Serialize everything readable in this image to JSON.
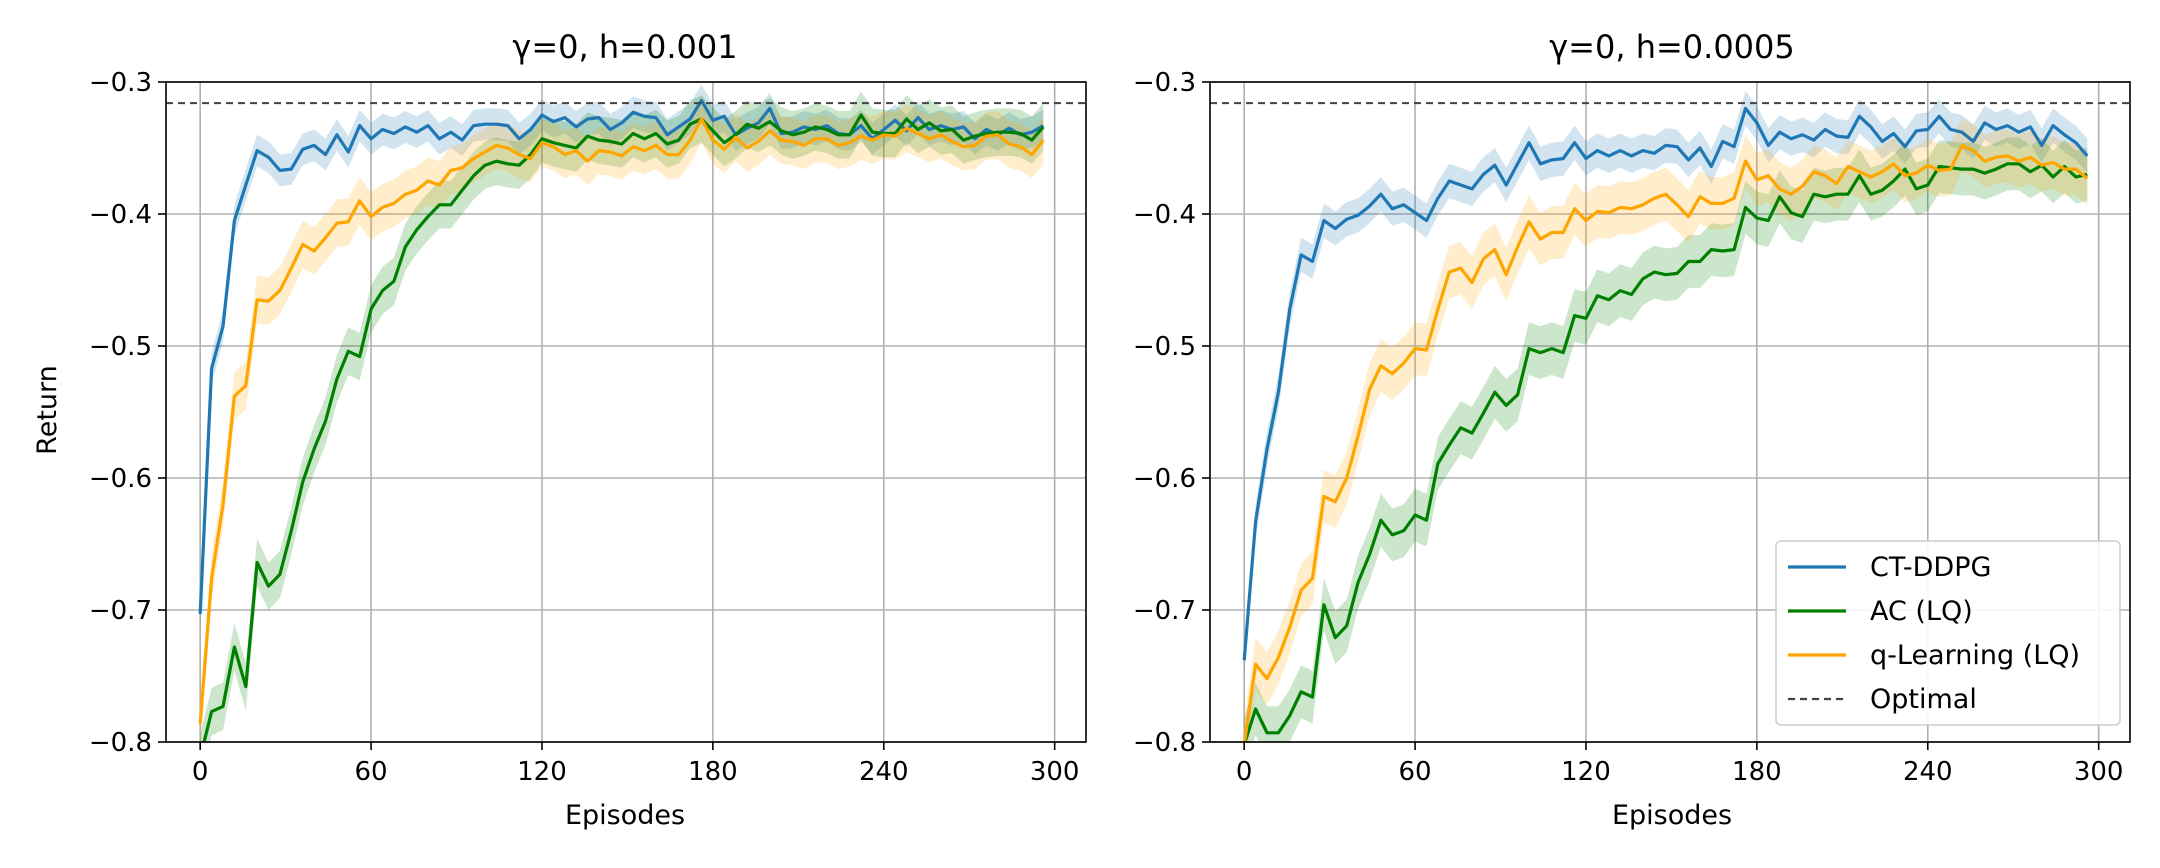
{
  "chart_data": [
    {
      "type": "line",
      "title": "γ=0, h=0.001",
      "xlabel": "Episodes",
      "ylabel": "Return",
      "xlim": [
        -12,
        311
      ],
      "ylim": [
        -0.8,
        -0.3
      ],
      "xticks": [
        0,
        60,
        120,
        180,
        240,
        300
      ],
      "xtick_labels": [
        "0",
        "60",
        "120",
        "180",
        "240",
        "300"
      ],
      "yticks": [
        -0.3,
        -0.4,
        -0.5,
        -0.6,
        -0.7,
        -0.8
      ],
      "ytick_labels": [
        "−0.3",
        "−0.4",
        "−0.5",
        "−0.6",
        "−0.7",
        "−0.8"
      ],
      "grid": true,
      "legend": false,
      "reference_line": {
        "name": "Optimal",
        "y": -0.316,
        "style": "dashed",
        "color": "#444444"
      },
      "series": [
        {
          "name": "CT-DDPG",
          "color": "#1f77b4",
          "x": [
            0,
            4,
            8,
            12,
            16,
            20,
            24,
            28,
            32,
            36,
            40,
            44,
            48,
            52,
            56,
            60,
            64,
            68,
            72,
            76,
            80,
            84,
            88,
            92,
            96,
            100,
            104,
            108,
            112,
            116,
            120,
            124,
            128,
            132,
            136,
            140,
            144,
            148,
            152,
            156,
            160,
            164,
            168,
            172,
            176,
            180,
            184,
            188,
            192,
            196,
            200,
            204,
            208,
            212,
            216,
            220,
            224,
            228,
            232,
            236,
            240,
            244,
            248,
            252,
            256,
            260,
            264,
            268,
            272,
            276,
            280,
            284,
            288,
            292,
            296
          ],
          "y": [
            -0.703,
            -0.517,
            -0.485,
            -0.405,
            -0.378,
            -0.352,
            -0.357,
            -0.367,
            -0.366,
            -0.351,
            -0.348,
            -0.355,
            -0.34,
            -0.353,
            -0.333,
            -0.343,
            -0.336,
            -0.339,
            -0.334,
            -0.338,
            -0.333,
            -0.343,
            -0.338,
            -0.344,
            -0.333,
            -0.332,
            -0.332,
            -0.333,
            -0.343,
            -0.336,
            -0.325,
            -0.33,
            -0.327,
            -0.334,
            -0.328,
            -0.327,
            -0.336,
            -0.331,
            -0.323,
            -0.326,
            -0.327,
            -0.34,
            -0.334,
            -0.328,
            -0.314,
            -0.329,
            -0.326,
            -0.34,
            -0.335,
            -0.331,
            -0.32,
            -0.339,
            -0.338,
            -0.334,
            -0.336,
            -0.333,
            -0.339,
            -0.34,
            -0.333,
            -0.343,
            -0.336,
            -0.329,
            -0.337,
            -0.327,
            -0.336,
            -0.333,
            -0.336,
            -0.334,
            -0.343,
            -0.336,
            -0.34,
            -0.335,
            -0.34,
            -0.338,
            -0.333
          ],
          "band": 0.012
        },
        {
          "name": "AC (LQ)",
          "color": "#008000",
          "x": [
            0,
            4,
            8,
            12,
            16,
            20,
            24,
            28,
            32,
            36,
            40,
            44,
            48,
            52,
            56,
            60,
            64,
            68,
            72,
            76,
            80,
            84,
            88,
            92,
            96,
            100,
            104,
            108,
            112,
            116,
            120,
            124,
            128,
            132,
            136,
            140,
            144,
            148,
            152,
            156,
            160,
            164,
            168,
            172,
            176,
            180,
            184,
            188,
            192,
            196,
            200,
            204,
            208,
            212,
            216,
            220,
            224,
            228,
            232,
            236,
            240,
            244,
            248,
            252,
            256,
            260,
            264,
            268,
            272,
            276,
            280,
            284,
            288,
            292,
            296
          ],
          "y": [
            -0.812,
            -0.777,
            -0.773,
            -0.728,
            -0.758,
            -0.664,
            -0.682,
            -0.673,
            -0.64,
            -0.603,
            -0.578,
            -0.557,
            -0.525,
            -0.504,
            -0.508,
            -0.472,
            -0.458,
            -0.451,
            -0.425,
            -0.412,
            -0.402,
            -0.393,
            -0.393,
            -0.382,
            -0.371,
            -0.363,
            -0.36,
            -0.362,
            -0.363,
            -0.355,
            -0.343,
            -0.346,
            -0.348,
            -0.35,
            -0.341,
            -0.344,
            -0.345,
            -0.347,
            -0.339,
            -0.343,
            -0.339,
            -0.347,
            -0.344,
            -0.332,
            -0.328,
            -0.337,
            -0.346,
            -0.34,
            -0.332,
            -0.335,
            -0.33,
            -0.337,
            -0.34,
            -0.338,
            -0.334,
            -0.336,
            -0.34,
            -0.34,
            -0.325,
            -0.338,
            -0.339,
            -0.339,
            -0.328,
            -0.336,
            -0.331,
            -0.337,
            -0.336,
            -0.344,
            -0.341,
            -0.339,
            -0.338,
            -0.338,
            -0.339,
            -0.344,
            -0.334
          ],
          "band": 0.018
        },
        {
          "name": "q-Learning (LQ)",
          "color": "#ffa500",
          "x": [
            0,
            4,
            8,
            12,
            16,
            20,
            24,
            28,
            32,
            36,
            40,
            44,
            48,
            52,
            56,
            60,
            64,
            68,
            72,
            76,
            80,
            84,
            88,
            92,
            96,
            100,
            104,
            108,
            112,
            116,
            120,
            124,
            128,
            132,
            136,
            140,
            144,
            148,
            152,
            156,
            160,
            164,
            168,
            172,
            176,
            180,
            184,
            188,
            192,
            196,
            200,
            204,
            208,
            212,
            216,
            220,
            224,
            228,
            232,
            236,
            240,
            244,
            248,
            252,
            256,
            260,
            264,
            268,
            272,
            276,
            280,
            284,
            288,
            292,
            296
          ],
          "y": [
            -0.786,
            -0.676,
            -0.62,
            -0.538,
            -0.53,
            -0.465,
            -0.466,
            -0.458,
            -0.441,
            -0.423,
            -0.428,
            -0.418,
            -0.407,
            -0.406,
            -0.39,
            -0.402,
            -0.395,
            -0.392,
            -0.385,
            -0.382,
            -0.375,
            -0.378,
            -0.367,
            -0.365,
            -0.358,
            -0.353,
            -0.348,
            -0.35,
            -0.355,
            -0.358,
            -0.346,
            -0.349,
            -0.355,
            -0.352,
            -0.36,
            -0.352,
            -0.353,
            -0.356,
            -0.349,
            -0.352,
            -0.348,
            -0.355,
            -0.355,
            -0.344,
            -0.328,
            -0.344,
            -0.351,
            -0.342,
            -0.35,
            -0.345,
            -0.337,
            -0.344,
            -0.345,
            -0.348,
            -0.343,
            -0.343,
            -0.348,
            -0.346,
            -0.341,
            -0.344,
            -0.34,
            -0.341,
            -0.335,
            -0.339,
            -0.343,
            -0.34,
            -0.345,
            -0.349,
            -0.348,
            -0.341,
            -0.34,
            -0.347,
            -0.349,
            -0.355,
            -0.344
          ],
          "band": 0.018
        }
      ]
    },
    {
      "type": "line",
      "title": "γ=0, h=0.0005",
      "xlabel": "Episodes",
      "ylabel": "",
      "xlim": [
        -12,
        311
      ],
      "ylim": [
        -0.8,
        -0.3
      ],
      "xticks": [
        0,
        60,
        120,
        180,
        240,
        300
      ],
      "xtick_labels": [
        "0",
        "60",
        "120",
        "180",
        "240",
        "300"
      ],
      "yticks": [
        -0.3,
        -0.4,
        -0.5,
        -0.6,
        -0.7,
        -0.8
      ],
      "ytick_labels": [
        "−0.3",
        "−0.4",
        "−0.5",
        "−0.6",
        "−0.7",
        "−0.8"
      ],
      "grid": true,
      "legend": "lower right",
      "reference_line": {
        "name": "Optimal",
        "y": -0.316,
        "style": "dashed",
        "color": "#444444"
      },
      "series": [
        {
          "name": "CT-DDPG",
          "color": "#1f77b4",
          "x": [
            0,
            4,
            8,
            12,
            16,
            20,
            24,
            28,
            32,
            36,
            40,
            44,
            48,
            52,
            56,
            60,
            64,
            68,
            72,
            76,
            80,
            84,
            88,
            92,
            96,
            100,
            104,
            108,
            112,
            116,
            120,
            124,
            128,
            132,
            136,
            140,
            144,
            148,
            152,
            156,
            160,
            164,
            168,
            172,
            176,
            180,
            184,
            188,
            192,
            196,
            200,
            204,
            208,
            212,
            216,
            220,
            224,
            228,
            232,
            236,
            240,
            244,
            248,
            252,
            256,
            260,
            264,
            268,
            272,
            276,
            280,
            284,
            288,
            292,
            296
          ],
          "y": [
            -0.738,
            -0.633,
            -0.578,
            -0.535,
            -0.472,
            -0.431,
            -0.436,
            -0.405,
            -0.411,
            -0.404,
            -0.401,
            -0.394,
            -0.385,
            -0.396,
            -0.393,
            -0.399,
            -0.405,
            -0.388,
            -0.375,
            -0.378,
            -0.381,
            -0.37,
            -0.363,
            -0.378,
            -0.362,
            -0.346,
            -0.362,
            -0.359,
            -0.358,
            -0.346,
            -0.358,
            -0.352,
            -0.356,
            -0.352,
            -0.356,
            -0.352,
            -0.354,
            -0.348,
            -0.349,
            -0.359,
            -0.35,
            -0.364,
            -0.345,
            -0.349,
            -0.32,
            -0.331,
            -0.348,
            -0.338,
            -0.343,
            -0.34,
            -0.344,
            -0.336,
            -0.341,
            -0.342,
            -0.326,
            -0.334,
            -0.345,
            -0.339,
            -0.349,
            -0.337,
            -0.336,
            -0.326,
            -0.336,
            -0.338,
            -0.345,
            -0.331,
            -0.336,
            -0.333,
            -0.338,
            -0.334,
            -0.348,
            -0.333,
            -0.34,
            -0.346,
            -0.356
          ],
          "band": 0.013
        },
        {
          "name": "AC (LQ)",
          "color": "#008000",
          "x": [
            0,
            4,
            8,
            12,
            16,
            20,
            24,
            28,
            32,
            36,
            40,
            44,
            48,
            52,
            56,
            60,
            64,
            68,
            72,
            76,
            80,
            84,
            88,
            92,
            96,
            100,
            104,
            108,
            112,
            116,
            120,
            124,
            128,
            132,
            136,
            140,
            144,
            148,
            152,
            156,
            160,
            164,
            168,
            172,
            176,
            180,
            184,
            188,
            192,
            196,
            200,
            204,
            208,
            212,
            216,
            220,
            224,
            228,
            232,
            236,
            240,
            244,
            248,
            252,
            256,
            260,
            264,
            268,
            272,
            276,
            280,
            284,
            288,
            292,
            296
          ],
          "y": [
            -0.802,
            -0.775,
            -0.793,
            -0.793,
            -0.78,
            -0.762,
            -0.766,
            -0.696,
            -0.721,
            -0.712,
            -0.679,
            -0.658,
            -0.632,
            -0.643,
            -0.64,
            -0.628,
            -0.632,
            -0.589,
            -0.575,
            -0.562,
            -0.566,
            -0.551,
            -0.535,
            -0.545,
            -0.537,
            -0.502,
            -0.505,
            -0.502,
            -0.505,
            -0.477,
            -0.479,
            -0.462,
            -0.465,
            -0.458,
            -0.461,
            -0.449,
            -0.444,
            -0.446,
            -0.445,
            -0.436,
            -0.436,
            -0.427,
            -0.428,
            -0.427,
            -0.395,
            -0.403,
            -0.405,
            -0.387,
            -0.399,
            -0.402,
            -0.385,
            -0.387,
            -0.385,
            -0.385,
            -0.371,
            -0.385,
            -0.382,
            -0.375,
            -0.366,
            -0.381,
            -0.378,
            -0.364,
            -0.365,
            -0.366,
            -0.366,
            -0.369,
            -0.366,
            -0.362,
            -0.362,
            -0.368,
            -0.363,
            -0.372,
            -0.364,
            -0.372,
            -0.37
          ],
          "band": 0.02
        },
        {
          "name": "q-Learning (LQ)",
          "color": "#ffa500",
          "x": [
            0,
            4,
            8,
            12,
            16,
            20,
            24,
            28,
            32,
            36,
            40,
            44,
            48,
            52,
            56,
            60,
            64,
            68,
            72,
            76,
            80,
            84,
            88,
            92,
            96,
            100,
            104,
            108,
            112,
            116,
            120,
            124,
            128,
            132,
            136,
            140,
            144,
            148,
            152,
            156,
            160,
            164,
            168,
            172,
            176,
            180,
            184,
            188,
            192,
            196,
            200,
            204,
            208,
            212,
            216,
            220,
            224,
            228,
            232,
            236,
            240,
            244,
            248,
            252,
            256,
            260,
            264,
            268,
            272,
            276,
            280,
            284,
            288,
            292,
            296
          ],
          "y": [
            -0.802,
            -0.741,
            -0.752,
            -0.736,
            -0.713,
            -0.685,
            -0.676,
            -0.614,
            -0.618,
            -0.6,
            -0.568,
            -0.533,
            -0.515,
            -0.521,
            -0.513,
            -0.502,
            -0.503,
            -0.472,
            -0.444,
            -0.441,
            -0.452,
            -0.434,
            -0.427,
            -0.446,
            -0.425,
            -0.406,
            -0.419,
            -0.414,
            -0.414,
            -0.396,
            -0.405,
            -0.398,
            -0.399,
            -0.395,
            -0.396,
            -0.393,
            -0.388,
            -0.385,
            -0.393,
            -0.402,
            -0.387,
            -0.392,
            -0.392,
            -0.388,
            -0.36,
            -0.374,
            -0.371,
            -0.381,
            -0.385,
            -0.379,
            -0.368,
            -0.371,
            -0.377,
            -0.364,
            -0.368,
            -0.372,
            -0.368,
            -0.362,
            -0.371,
            -0.369,
            -0.363,
            -0.367,
            -0.366,
            -0.348,
            -0.352,
            -0.36,
            -0.357,
            -0.356,
            -0.36,
            -0.357,
            -0.363,
            -0.361,
            -0.366,
            -0.366,
            -0.373
          ],
          "band": 0.02
        }
      ]
    }
  ],
  "legend": {
    "entries": [
      {
        "label": "CT-DDPG",
        "color": "#1f77b4",
        "style": "solid"
      },
      {
        "label": "AC (LQ)",
        "color": "#008000",
        "style": "solid"
      },
      {
        "label": "q-Learning (LQ)",
        "color": "#ffa500",
        "style": "solid"
      },
      {
        "label": "Optimal",
        "color": "#444444",
        "style": "dashed"
      }
    ]
  }
}
